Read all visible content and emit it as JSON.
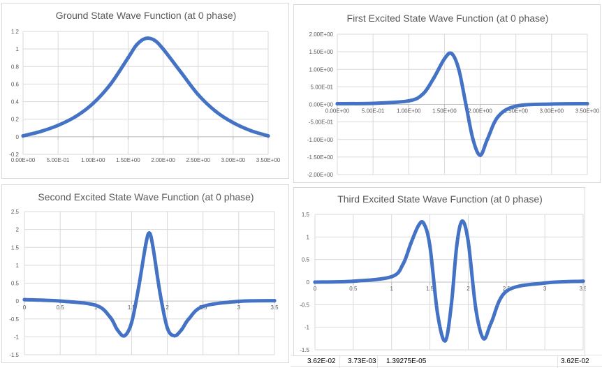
{
  "spreadsheet": {
    "bottom_cells": [
      "3.62E-02",
      "3.73E-03",
      "1.39275E-05"
    ],
    "right_cell": "3.62E-02"
  },
  "chart_data": [
    {
      "type": "line",
      "title": "Ground State Wave Function (at 0 phase)",
      "x": [
        0,
        0.25,
        0.5,
        0.75,
        1.0,
        1.25,
        1.5,
        1.625,
        1.75,
        1.875,
        2.0,
        2.25,
        2.5,
        2.75,
        3.0,
        3.25,
        3.5
      ],
      "series": [
        {
          "values": [
            0.01,
            0.06,
            0.13,
            0.23,
            0.38,
            0.6,
            0.9,
            1.05,
            1.12,
            1.1,
            1.0,
            0.74,
            0.48,
            0.29,
            0.16,
            0.07,
            0.01
          ]
        }
      ],
      "xlim": [
        0,
        3.5
      ],
      "ylim": [
        -0.2,
        1.2
      ],
      "xticks": [
        0,
        0.5,
        1,
        1.5,
        2,
        2.5,
        3,
        3.5
      ],
      "xtick_labels": [
        "0.00E+00",
        "5.00E-01",
        "1.00E+00",
        "1.50E+00",
        "2.00E+00",
        "2.50E+00",
        "3.00E+00",
        "3.50E+00"
      ],
      "yticks": [
        -0.2,
        0,
        0.2,
        0.4,
        0.6,
        0.8,
        1,
        1.2
      ],
      "ytick_labels": [
        "-0.2",
        "0",
        "0.2",
        "0.4",
        "0.6",
        "0.8",
        "1",
        "1.2"
      ],
      "color": "#4472c4",
      "grid": true
    },
    {
      "type": "line",
      "title": "First Excited State Wave Function (at 0 phase)",
      "x": [
        0,
        0.5,
        1.0,
        1.2,
        1.35,
        1.5,
        1.6,
        1.7,
        1.8,
        1.9,
        2.0,
        2.1,
        2.25,
        2.5,
        3.0,
        3.5
      ],
      "series": [
        {
          "values": [
            0.02,
            0.03,
            0.1,
            0.3,
            0.75,
            1.3,
            1.45,
            1.0,
            0.0,
            -1.0,
            -1.45,
            -1.0,
            -0.35,
            -0.05,
            0.01,
            0.02
          ]
        }
      ],
      "xlim": [
        0,
        3.5
      ],
      "ylim": [
        -2,
        2
      ],
      "xticks": [
        0,
        0.5,
        1,
        1.5,
        2,
        2.5,
        3,
        3.5
      ],
      "xtick_labels": [
        "0.00E+00",
        "5.00E-01",
        "1.00E+00",
        "1.50E+00",
        "2.00E+00",
        "2.50E+00",
        "3.00E+00",
        "3.50E+00"
      ],
      "yticks": [
        -2,
        -1.5,
        -1,
        -0.5,
        0,
        0.5,
        1,
        1.5,
        2
      ],
      "ytick_labels": [
        "-2.00E+00",
        "-1.50E+00",
        "-1.00E+00",
        "-5.00E-01",
        "0.00E+00",
        "5.00E-01",
        "1.00E+00",
        "1.50E+00",
        "2.00E+00"
      ],
      "color": "#4472c4",
      "grid": true
    },
    {
      "type": "line",
      "title": "Second Excited State Wave Function (at 0 phase)",
      "x": [
        0,
        0.5,
        1.0,
        1.2,
        1.3,
        1.4,
        1.5,
        1.6,
        1.7,
        1.75,
        1.8,
        1.9,
        2.0,
        2.1,
        2.2,
        2.3,
        2.5,
        3.0,
        3.5
      ],
      "series": [
        {
          "values": [
            0.04,
            0.0,
            -0.12,
            -0.45,
            -0.8,
            -0.97,
            -0.6,
            0.4,
            1.6,
            1.9,
            1.5,
            0.2,
            -0.75,
            -0.97,
            -0.8,
            -0.5,
            -0.15,
            -0.01,
            0.01
          ]
        }
      ],
      "xlim": [
        0,
        3.5
      ],
      "ylim": [
        -1.5,
        2.5
      ],
      "xticks": [
        0,
        0.5,
        1,
        1.5,
        2,
        2.5,
        3,
        3.5
      ],
      "xtick_labels": [
        "0",
        "0.5",
        "1",
        "1.5",
        "2",
        "2.5",
        "3",
        "3.5"
      ],
      "yticks": [
        -1.5,
        -1,
        -0.5,
        0,
        0.5,
        1,
        1.5,
        2,
        2.5
      ],
      "ytick_labels": [
        "-1.5",
        "-1",
        "-0.5",
        "0",
        "0.5",
        "1",
        "1.5",
        "2",
        "2.5"
      ],
      "color": "#4472c4",
      "grid": true
    },
    {
      "type": "line",
      "title": "Third Excited State Wave Function (at 0 phase)",
      "x": [
        0,
        0.5,
        1.0,
        1.15,
        1.25,
        1.35,
        1.42,
        1.5,
        1.6,
        1.7,
        1.78,
        1.85,
        1.92,
        2.0,
        2.1,
        2.2,
        2.3,
        2.5,
        3.0,
        3.5
      ],
      "series": [
        {
          "values": [
            0.0,
            0.02,
            0.12,
            0.4,
            0.85,
            1.25,
            1.3,
            0.8,
            -0.7,
            -1.3,
            -0.5,
            0.8,
            1.35,
            0.9,
            -0.6,
            -1.25,
            -0.9,
            -0.2,
            -0.02,
            0.02
          ]
        }
      ],
      "xlim": [
        0,
        3.5
      ],
      "ylim": [
        -1.5,
        1.5
      ],
      "xticks": [
        0,
        0.5,
        1,
        1.5,
        2,
        2.5,
        3,
        3.5
      ],
      "xtick_labels": [
        "0",
        "0.5",
        "1",
        "1.5",
        "2",
        "2.5",
        "3",
        "3.5"
      ],
      "yticks": [
        -1.5,
        -1,
        -0.5,
        0,
        0.5,
        1,
        1.5
      ],
      "ytick_labels": [
        "-1.5",
        "-1",
        "-0.5",
        "0",
        "0.5",
        "1",
        "1.5"
      ],
      "color": "#4472c4",
      "grid": true
    }
  ]
}
